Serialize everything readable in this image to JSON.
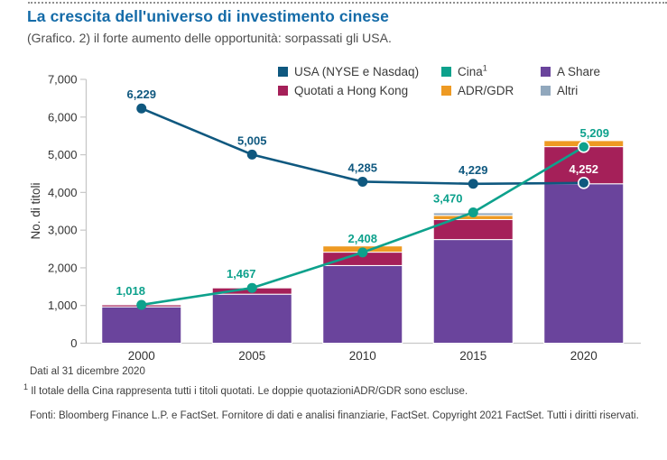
{
  "page": {
    "title": "La crescita dell'universo di investimento cinese",
    "subtitle": "(Grafico. 2) il forte aumento delle opportunità: sorpassati gli USA."
  },
  "footnotes": {
    "data_as_of": "Dati al 31 dicembre 2020",
    "note_sup": "1",
    "note_text": "Il totale della Cina rappresenta tutti i titoli quotati. Le doppie quotazioniADR/GDR sono escluse.",
    "sources": "Fonti: Bloomberg Finance L.P. e FactSet. Fornitore di dati e analisi finanziarie, FactSet. Copyright 2021 FactSet. Tutti i diritti riservati."
  },
  "chart_data": {
    "type": "bar",
    "subtype": "stacked-bar-with-lines",
    "categories": [
      "2000",
      "2005",
      "2010",
      "2015",
      "2020"
    ],
    "ylabel": "No. di titoli",
    "xlabel": "",
    "ylim": [
      0,
      7000
    ],
    "ytick_interval": 1000,
    "grid": false,
    "legend_position": "top-inside",
    "line_series": [
      {
        "name": "USA (NYSE e Nasdaq)",
        "color": "#0f587f",
        "values": [
          6229,
          5005,
          4285,
          4229,
          4252
        ],
        "point_labels": [
          "6,229",
          "5,005",
          "4,285",
          "4,229",
          "4,252"
        ],
        "point_label_color_overrides": {
          "4": "#ffffff"
        }
      },
      {
        "name": "Cina",
        "color": "#0da18c",
        "values": [
          1018,
          1467,
          2408,
          3470,
          5209
        ],
        "point_labels": [
          "1,018",
          "1,467",
          "2,408",
          "3,470",
          "5,209"
        ],
        "point_label_color_overrides": {}
      }
    ],
    "bar_series": [
      {
        "name": "A Share",
        "color": "#6a449c",
        "values": [
          965,
          1300,
          2060,
          2750,
          4230
        ]
      },
      {
        "name": "Quotati a Hong Kong",
        "color": "#a52059",
        "values": [
          53,
          167,
          355,
          530,
          985
        ]
      },
      {
        "name": "ADR/GDR",
        "color": "#ee9a23",
        "values": [
          0,
          0,
          165,
          110,
          160
        ]
      },
      {
        "name": "Altri",
        "color": "#91a8bd",
        "values": [
          0,
          0,
          0,
          70,
          0
        ]
      }
    ],
    "legend": [
      {
        "label": "USA (NYSE e Nasdaq)",
        "sup": "",
        "color": "#0f587f"
      },
      {
        "label": "Cina",
        "sup": "1",
        "color": "#0da18c"
      },
      {
        "label": "A Share",
        "sup": "",
        "color": "#6a449c"
      },
      {
        "label": "Quotati a Hong Kong",
        "sup": "",
        "color": "#a52059"
      },
      {
        "label": "ADR/GDR",
        "sup": "",
        "color": "#ee9a23"
      },
      {
        "label": "Altri",
        "sup": "",
        "color": "#91a8bd"
      }
    ],
    "axis_color": "#c8c8c8",
    "tick_label_color": "#333333"
  }
}
